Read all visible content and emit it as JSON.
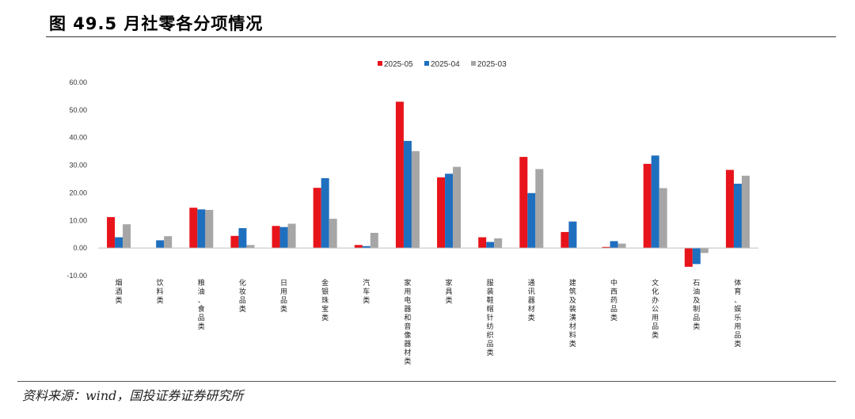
{
  "figure": {
    "title": "图 49.5 月社零各分项情况",
    "source": "资料来源：wind，国投证券证券研究所"
  },
  "chart_data": {
    "type": "bar",
    "title": "",
    "xlabel": "",
    "ylabel": "",
    "ylim": [
      -10,
      60
    ],
    "yticks": [
      -10,
      0,
      10,
      20,
      30,
      40,
      50,
      60
    ],
    "ytick_labels": [
      "-10.00",
      "0.00",
      "10.00",
      "20.00",
      "30.00",
      "40.00",
      "50.00",
      "60.00"
    ],
    "grid": false,
    "legend_position": "top-center",
    "categories": [
      "烟酒类",
      "饮料类",
      "粮油、食品类",
      "化妆品类",
      "日用品类",
      "金银珠宝类",
      "汽车类",
      "家用电器和音像器材类",
      "家具类",
      "服装鞋帽针纺织品类",
      "通讯器材类",
      "建筑及装潢材料类",
      "中西药品类",
      "文化办公用品类",
      "石油及制品类",
      "体育、娱乐用品类"
    ],
    "series": [
      {
        "name": "2025-05",
        "color": "#e8141b",
        "values": [
          11.2,
          0.0,
          14.6,
          4.4,
          8.0,
          21.8,
          1.1,
          53.0,
          25.6,
          3.9,
          33.0,
          5.8,
          0.4,
          30.5,
          -6.8,
          28.3
        ]
      },
      {
        "name": "2025-04",
        "color": "#1f6fbf",
        "values": [
          3.9,
          2.8,
          14.0,
          7.2,
          7.6,
          25.3,
          0.7,
          38.8,
          26.9,
          2.2,
          19.9,
          9.6,
          2.5,
          33.5,
          -5.8,
          23.3
        ]
      },
      {
        "name": "2025-03",
        "color": "#a6a6a6",
        "values": [
          8.6,
          4.3,
          13.8,
          1.1,
          8.8,
          10.6,
          5.5,
          35.1,
          29.4,
          3.5,
          28.6,
          0.0,
          1.6,
          21.7,
          -1.8,
          26.2
        ]
      }
    ]
  }
}
